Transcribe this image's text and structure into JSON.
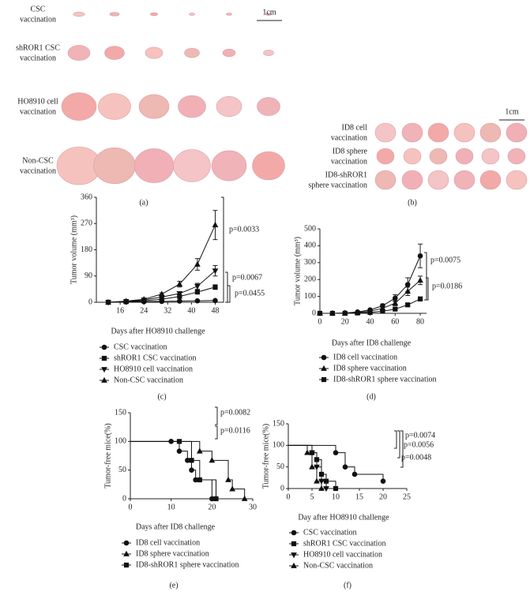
{
  "photos": {
    "panel_a": {
      "rows": [
        [
          "CSC",
          "vaccination"
        ],
        [
          "shROR1 CSC",
          "vaccination"
        ],
        [
          "HO8910 cell",
          "vaccination"
        ],
        [
          "Non-CSC",
          "vaccination"
        ]
      ],
      "scale": "1cm",
      "label": "(a)"
    },
    "panel_b": {
      "rows": [
        [
          "ID8 cell",
          "vaccination"
        ],
        [
          "ID8 sphere",
          "vaccination"
        ],
        [
          "ID8-shROR1",
          "sphere vaccination"
        ]
      ],
      "scale": "1cm",
      "label": "(b)"
    }
  },
  "chart_data": [
    {
      "type": "line",
      "panel_label": "(c)",
      "xlabel": "Days after HO8910 challenge",
      "ylabel": "Tumor volume (mm³)",
      "x": [
        12,
        18,
        24,
        30,
        36,
        42,
        48
      ],
      "xlim": [
        8,
        50
      ],
      "xticks": [
        16,
        24,
        32,
        40,
        48
      ],
      "ylim": [
        0,
        360
      ],
      "yticks": [
        0,
        90,
        180,
        270,
        360
      ],
      "series": [
        {
          "name": "CSC vaccination",
          "marker": "circle",
          "color": "#111",
          "values": [
            0,
            1,
            2,
            3,
            4,
            5,
            6
          ],
          "errors": [
            0,
            0,
            0,
            1,
            1,
            1,
            2
          ]
        },
        {
          "name": "shROR1 CSC vaccination",
          "marker": "square",
          "color": "#111",
          "values": [
            0,
            2,
            5,
            10,
            20,
            35,
            52
          ],
          "errors": [
            0,
            1,
            1,
            2,
            4,
            6,
            8
          ]
        },
        {
          "name": "HO8910 cell vaccination",
          "marker": "down",
          "color": "#111",
          "values": [
            0,
            3,
            8,
            18,
            30,
            55,
            108
          ],
          "errors": [
            0,
            1,
            2,
            3,
            6,
            10,
            18
          ]
        },
        {
          "name": "Non-CSC vaccination",
          "marker": "up",
          "color": "#111",
          "values": [
            0,
            4,
            10,
            28,
            62,
            130,
            265
          ],
          "errors": [
            0,
            1,
            2,
            4,
            10,
            20,
            50
          ]
        }
      ],
      "annotations": [
        "p=0.0033",
        "p=0.0067",
        "p=0.0455"
      ]
    },
    {
      "type": "line",
      "panel_label": "(d)",
      "xlabel": "Days after ID8 challenge",
      "ylabel": "Tumor volume (mm³)",
      "x": [
        0,
        10,
        20,
        30,
        40,
        50,
        60,
        70,
        80
      ],
      "xlim": [
        0,
        85
      ],
      "xticks": [
        0,
        20,
        40,
        60,
        80
      ],
      "ylim": [
        0,
        500
      ],
      "yticks": [
        0,
        100,
        200,
        300,
        400,
        500
      ],
      "series": [
        {
          "name": "ID8 cell vaccination",
          "marker": "circle",
          "color": "#111",
          "values": [
            0,
            0,
            2,
            8,
            20,
            45,
            90,
            170,
            340
          ],
          "errors": [
            0,
            0,
            1,
            2,
            5,
            10,
            20,
            40,
            70
          ]
        },
        {
          "name": "ID8 sphere vaccination",
          "marker": "up",
          "color": "#111",
          "values": [
            0,
            0,
            1,
            5,
            12,
            30,
            60,
            130,
            195
          ],
          "errors": [
            0,
            0,
            1,
            1,
            3,
            8,
            15,
            25,
            25
          ]
        },
        {
          "name": "ID8-shROR1 sphere vaccination",
          "marker": "square",
          "color": "#111",
          "values": [
            0,
            0,
            0,
            2,
            5,
            12,
            25,
            50,
            85
          ],
          "errors": [
            0,
            0,
            0,
            1,
            1,
            3,
            5,
            8,
            12
          ]
        }
      ],
      "annotations": [
        "p=0.0075",
        "p=0.0186"
      ]
    },
    {
      "type": "step",
      "panel_label": "(e)",
      "xlabel": "Days after ID8 challenge",
      "ylabel": "Tumor-free mice(%)",
      "xlim": [
        0,
        30
      ],
      "xticks": [
        0,
        10,
        20,
        30
      ],
      "ylim": [
        0,
        150
      ],
      "yticks": [
        0,
        50,
        100,
        150
      ],
      "series": [
        {
          "name": "ID8 cell vaccination",
          "marker": "circle",
          "color": "#111",
          "x": [
            0,
            10,
            12,
            14,
            15,
            16,
            20
          ],
          "values": [
            100,
            100,
            83,
            67,
            50,
            33,
            0
          ]
        },
        {
          "name": "ID8 sphere vaccination",
          "marker": "up",
          "color": "#111",
          "x": [
            0,
            17,
            20,
            24,
            25,
            28
          ],
          "values": [
            100,
            83,
            67,
            33,
            17,
            0
          ]
        },
        {
          "name": "ID8-shROR1 sphere vaccination",
          "marker": "square",
          "color": "#111",
          "x": [
            0,
            12,
            15,
            17,
            21
          ],
          "values": [
            100,
            100,
            67,
            33,
            0
          ]
        }
      ],
      "annotations": [
        "p=0.0082",
        "p=0.0116"
      ]
    },
    {
      "type": "step",
      "panel_label": "(f)",
      "xlabel": "Day after HO8910 challenge",
      "ylabel": "Tumor-free mice(%)",
      "xlim": [
        0,
        25
      ],
      "xticks": [
        0,
        5,
        10,
        15,
        20,
        25
      ],
      "ylim": [
        0,
        150
      ],
      "yticks": [
        0,
        50,
        100,
        150
      ],
      "series": [
        {
          "name": "CSC vaccination",
          "marker": "circle",
          "color": "#111",
          "x": [
            0,
            10,
            12,
            14,
            20
          ],
          "values": [
            100,
            83,
            50,
            33,
            17
          ]
        },
        {
          "name": "shROR1 CSC vaccination",
          "marker": "square",
          "color": "#111",
          "x": [
            0,
            5,
            6,
            7,
            8,
            10
          ],
          "values": [
            100,
            83,
            67,
            33,
            17,
            0
          ]
        },
        {
          "name": "HO8910 cell vaccination",
          "marker": "down",
          "color": "#111",
          "x": [
            0,
            5,
            6,
            7,
            8
          ],
          "values": [
            100,
            83,
            50,
            17,
            0
          ]
        },
        {
          "name": "Non-CSC vaccination",
          "marker": "up",
          "color": "#111",
          "x": [
            0,
            4,
            5,
            6,
            7
          ],
          "values": [
            100,
            83,
            50,
            17,
            0
          ]
        }
      ],
      "annotations": [
        "p=0.0074",
        "p=0.0056",
        "p=0.0048"
      ]
    }
  ]
}
